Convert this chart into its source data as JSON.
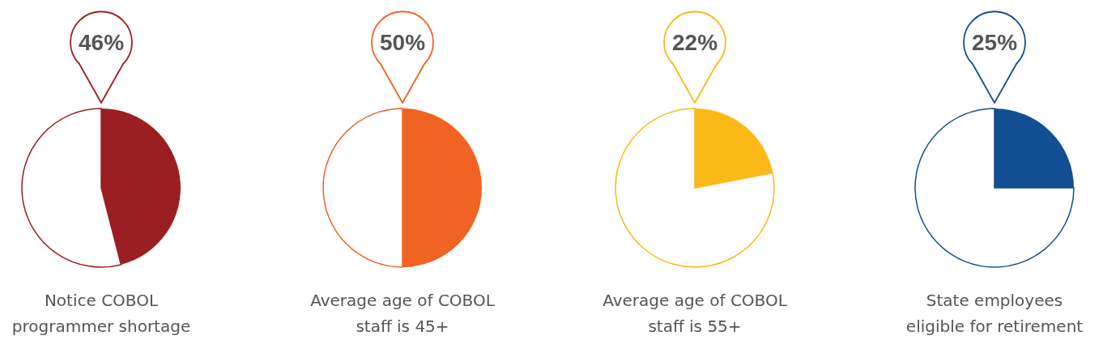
{
  "chart_data": [
    {
      "type": "pie",
      "title": "Notice COBOL\nprogrammer shortage",
      "categories": [
        null,
        null
      ],
      "values": [
        46,
        54
      ],
      "colors": [
        "#9b1f22",
        "#ffffff"
      ],
      "value_labels": [
        "46%",
        null
      ]
    },
    {
      "type": "pie",
      "title": "Average age of COBOL\nstaff is 45+",
      "categories": [
        null,
        null
      ],
      "values": [
        50,
        50
      ],
      "colors": [
        "#f06322",
        "#ffffff"
      ],
      "value_labels": [
        "50%",
        null
      ]
    },
    {
      "type": "pie",
      "title": "Average age of COBOL\nstaff is 55+",
      "categories": [
        null,
        null
      ],
      "values": [
        22,
        78
      ],
      "colors": [
        "#fbb918",
        "#ffffff"
      ],
      "value_labels": [
        "22%",
        null
      ]
    },
    {
      "type": "pie",
      "title": "State employees\neligible for retirement",
      "categories": [
        null,
        null
      ],
      "values": [
        25,
        75
      ],
      "colors": [
        "#124e91",
        "#ffffff"
      ],
      "value_labels": [
        "25%",
        null
      ]
    }
  ]
}
